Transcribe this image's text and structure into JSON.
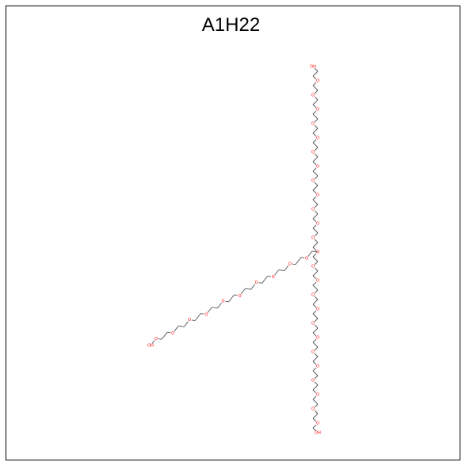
{
  "title": "A1H22",
  "colors": {
    "bond": "#555555",
    "oxygen": "#ff0000"
  },
  "molecule": {
    "atoms": [
      {
        "label": "OH"
      },
      {
        "label": "O"
      }
    ]
  }
}
